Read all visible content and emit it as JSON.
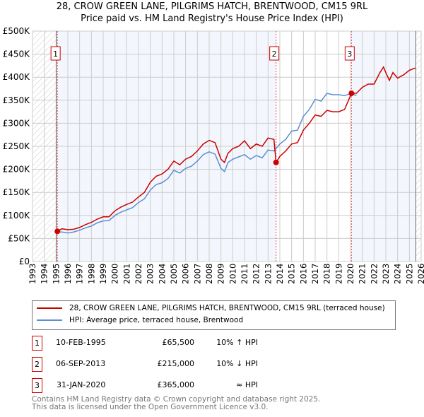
{
  "chart_data": {
    "type": "line",
    "title": "28, CROW GREEN LANE, PILGRIMS HATCH, BRENTWOOD, CM15 9RL",
    "subtitle": "Price paid vs. HM Land Registry's House Price Index (HPI)",
    "xlim": [
      1993,
      2026
    ],
    "ylim": [
      0,
      500000
    ],
    "xticks": [
      "1993",
      "1994",
      "1995",
      "1996",
      "1997",
      "1998",
      "1999",
      "2000",
      "2001",
      "2002",
      "2003",
      "2004",
      "2005",
      "2006",
      "2007",
      "2008",
      "2009",
      "2010",
      "2011",
      "2012",
      "2013",
      "2014",
      "2015",
      "2016",
      "2017",
      "2018",
      "2019",
      "2020",
      "2021",
      "2022",
      "2023",
      "2024",
      "2025",
      "2026"
    ],
    "yticks": [
      {
        "v": 0,
        "label": "£0"
      },
      {
        "v": 50000,
        "label": "£50K"
      },
      {
        "v": 100000,
        "label": "£100K"
      },
      {
        "v": 150000,
        "label": "£150K"
      },
      {
        "v": 200000,
        "label": "£200K"
      },
      {
        "v": 250000,
        "label": "£250K"
      },
      {
        "v": 300000,
        "label": "£300K"
      },
      {
        "v": 350000,
        "label": "£350K"
      },
      {
        "v": 400000,
        "label": "£400K"
      },
      {
        "v": 450000,
        "label": "£450K"
      },
      {
        "v": 500000,
        "label": "£500K"
      }
    ],
    "grid": true,
    "series": [
      {
        "name": "28, CROW GREEN LANE, PILGRIMS HATCH, BRENTWOOD, CM15 9RL (terraced house)",
        "color": "#cc0000",
        "x": [
          1995.11,
          1995.5,
          1996,
          1996.5,
          1997,
          1997.5,
          1998,
          1998.5,
          1999,
          1999.5,
          2000,
          2000.5,
          2001,
          2001.5,
          2002,
          2002.5,
          2003,
          2003.5,
          2004,
          2004.5,
          2005,
          2005.5,
          2006,
          2006.5,
          2007,
          2007.5,
          2008,
          2008.5,
          2009,
          2009.3,
          2009.6,
          2010,
          2010.5,
          2011,
          2011.5,
          2012,
          2012.5,
          2013,
          2013.5,
          2013.68,
          2014,
          2014.5,
          2015,
          2015.5,
          2016,
          2016.5,
          2017,
          2017.5,
          2018,
          2018.5,
          2019,
          2019.5,
          2020.08,
          2020.5,
          2021,
          2021.5,
          2022,
          2022.5,
          2022.8,
          2023,
          2023.3,
          2023.6,
          2024,
          2024.5,
          2025,
          2025.5
        ],
        "y": [
          65500,
          71000,
          69000,
          70000,
          74000,
          80000,
          85000,
          92000,
          97000,
          97000,
          110000,
          118000,
          124000,
          129000,
          140000,
          150000,
          172000,
          185000,
          190000,
          200000,
          218000,
          210000,
          222000,
          228000,
          240000,
          255000,
          263000,
          258000,
          222000,
          215000,
          235000,
          245000,
          250000,
          262000,
          245000,
          255000,
          250000,
          268000,
          265000,
          215000,
          228000,
          240000,
          255000,
          258000,
          285000,
          300000,
          318000,
          315000,
          328000,
          325000,
          325000,
          330000,
          365000,
          365000,
          378000,
          385000,
          385000,
          410000,
          422000,
          410000,
          393000,
          410000,
          398000,
          405000,
          415000,
          420000
        ]
      },
      {
        "name": "HPI: Average price, terraced house, Brentwood",
        "color": "#5b8fd0",
        "x": [
          1995,
          1995.5,
          1996,
          1996.5,
          1997,
          1997.5,
          1998,
          1998.5,
          1999,
          1999.5,
          2000,
          2000.5,
          2001,
          2001.5,
          2002,
          2002.5,
          2003,
          2003.5,
          2004,
          2004.5,
          2005,
          2005.5,
          2006,
          2006.5,
          2007,
          2007.5,
          2008,
          2008.5,
          2009,
          2009.3,
          2009.6,
          2010,
          2010.5,
          2011,
          2011.5,
          2012,
          2012.5,
          2013,
          2013.5,
          2014,
          2014.5,
          2015,
          2015.5,
          2016,
          2016.5,
          2017,
          2017.5,
          2018,
          2018.5,
          2019,
          2019.5,
          2020.08,
          2020.5
        ],
        "y": [
          64000,
          64000,
          62000,
          64000,
          68000,
          73000,
          77000,
          84000,
          88000,
          89000,
          100000,
          107000,
          112000,
          117000,
          128000,
          136000,
          155000,
          167000,
          171000,
          180000,
          198000,
          192000,
          202000,
          207000,
          218000,
          232000,
          238000,
          233000,
          202000,
          195000,
          215000,
          222000,
          227000,
          232000,
          222000,
          230000,
          225000,
          242000,
          240000,
          255000,
          265000,
          283000,
          285000,
          315000,
          330000,
          352000,
          348000,
          365000,
          362000,
          362000,
          360000,
          365000,
          360000
        ]
      }
    ],
    "sales": [
      {
        "id": "1",
        "x": 1995.11,
        "y": 65500
      },
      {
        "id": "2",
        "x": 2013.68,
        "y": 215000
      },
      {
        "id": "3",
        "x": 2020.08,
        "y": 365000
      }
    ]
  },
  "legend": {
    "red": "28, CROW GREEN LANE, PILGRIMS HATCH, BRENTWOOD, CM15 9RL (terraced house)",
    "blue": "HPI: Average price, terraced house, Brentwood"
  },
  "table": [
    {
      "num": "1",
      "date": "10-FEB-1995",
      "price": "£65,500",
      "hpi": "10% ↑ HPI"
    },
    {
      "num": "2",
      "date": "06-SEP-2013",
      "price": "£215,000",
      "hpi": "10% ↓ HPI"
    },
    {
      "num": "3",
      "date": "31-JAN-2020",
      "price": "£365,000",
      "hpi": "≈ HPI"
    }
  ],
  "footer": {
    "line1": "Contains HM Land Registry data © Crown copyright and database right 2025.",
    "line2": "This data is licensed under the Open Government Licence v3.0."
  }
}
